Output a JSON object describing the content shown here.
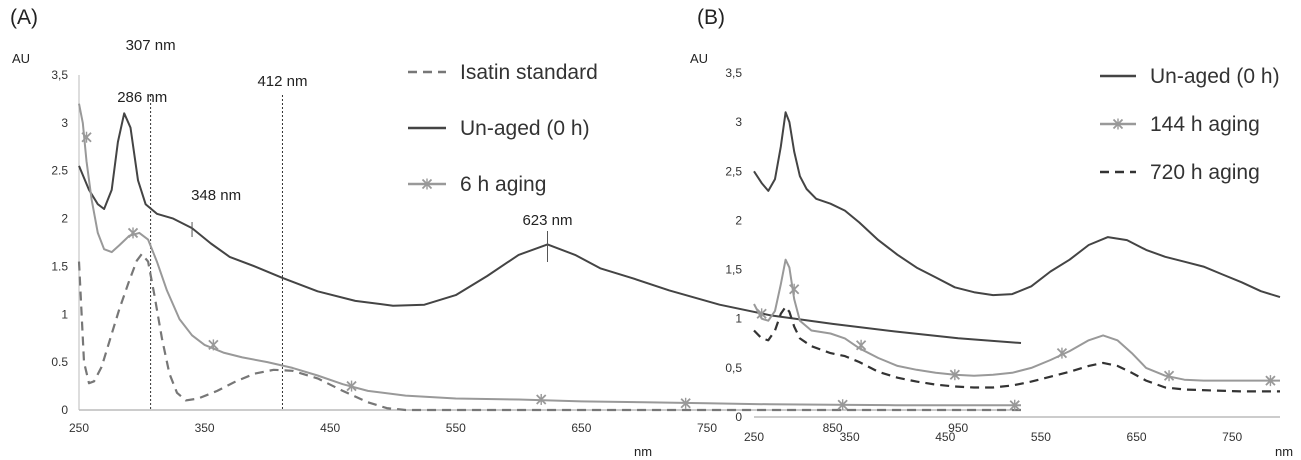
{
  "chart_data": [
    {
      "panel_label": "(A)",
      "type": "line",
      "ylabel": "AU",
      "xlabel": "nm",
      "xlim": [
        250,
        1000
      ],
      "ylim": [
        0,
        3.5
      ],
      "x_ticks": [
        "250",
        "350",
        "450",
        "550",
        "650",
        "750",
        "850",
        "950"
      ],
      "y_ticks": [
        "0",
        "0.5",
        "1",
        "1.5",
        "2",
        "2.5",
        "3",
        "3,5"
      ],
      "legend_position": "top-right",
      "vlines": [
        307,
        412
      ],
      "annotations": [
        {
          "text": "307 nm",
          "x": 307
        },
        {
          "text": "286 nm",
          "x": 286
        },
        {
          "text": "412 nm",
          "x": 412
        },
        {
          "text": "348 nm",
          "x": 348
        },
        {
          "text": "623 nm",
          "x": 623
        }
      ],
      "series": [
        {
          "name": "Isatin standard",
          "color": "#777777",
          "style": "dashed",
          "points": [
            [
              250,
              1.55
            ],
            [
              254,
              0.5
            ],
            [
              258,
              0.28
            ],
            [
              262,
              0.3
            ],
            [
              268,
              0.45
            ],
            [
              275,
              0.75
            ],
            [
              282,
              1.05
            ],
            [
              290,
              1.35
            ],
            [
              296,
              1.56
            ],
            [
              300,
              1.63
            ],
            [
              305,
              1.55
            ],
            [
              310,
              1.2
            ],
            [
              316,
              0.75
            ],
            [
              322,
              0.38
            ],
            [
              328,
              0.18
            ],
            [
              335,
              0.1
            ],
            [
              345,
              0.12
            ],
            [
              360,
              0.2
            ],
            [
              375,
              0.3
            ],
            [
              390,
              0.38
            ],
            [
              405,
              0.42
            ],
            [
              420,
              0.41
            ],
            [
              440,
              0.33
            ],
            [
              460,
              0.2
            ],
            [
              480,
              0.08
            ],
            [
              495,
              0.02
            ],
            [
              510,
              0.0
            ],
            [
              1000,
              0.0
            ]
          ]
        },
        {
          "name": "Un-aged (0 h)",
          "color": "#444444",
          "style": "solid",
          "points": [
            [
              250,
              2.55
            ],
            [
              258,
              2.3
            ],
            [
              265,
              2.15
            ],
            [
              270,
              2.1
            ],
            [
              276,
              2.3
            ],
            [
              281,
              2.8
            ],
            [
              286,
              3.1
            ],
            [
              291,
              2.95
            ],
            [
              297,
              2.4
            ],
            [
              303,
              2.15
            ],
            [
              312,
              2.05
            ],
            [
              325,
              2.0
            ],
            [
              340,
              1.9
            ],
            [
              355,
              1.74
            ],
            [
              370,
              1.6
            ],
            [
              390,
              1.5
            ],
            [
              412,
              1.38
            ],
            [
              440,
              1.24
            ],
            [
              470,
              1.14
            ],
            [
              500,
              1.09
            ],
            [
              525,
              1.1
            ],
            [
              550,
              1.2
            ],
            [
              575,
              1.4
            ],
            [
              600,
              1.62
            ],
            [
              623,
              1.73
            ],
            [
              645,
              1.62
            ],
            [
              665,
              1.48
            ],
            [
              690,
              1.38
            ],
            [
              720,
              1.25
            ],
            [
              760,
              1.1
            ],
            [
              800,
              0.99
            ],
            [
              850,
              0.9
            ],
            [
              900,
              0.82
            ],
            [
              950,
              0.75
            ],
            [
              1000,
              0.7
            ]
          ]
        },
        {
          "name": "6 h aging",
          "color": "#999999",
          "style": "solid-x",
          "points": [
            [
              250,
              3.2
            ],
            [
              253,
              3.0
            ],
            [
              256,
              2.6
            ],
            [
              260,
              2.2
            ],
            [
              265,
              1.85
            ],
            [
              270,
              1.68
            ],
            [
              276,
              1.65
            ],
            [
              282,
              1.72
            ],
            [
              290,
              1.82
            ],
            [
              298,
              1.85
            ],
            [
              305,
              1.78
            ],
            [
              312,
              1.55
            ],
            [
              320,
              1.25
            ],
            [
              330,
              0.95
            ],
            [
              340,
              0.78
            ],
            [
              350,
              0.68
            ],
            [
              365,
              0.6
            ],
            [
              380,
              0.55
            ],
            [
              400,
              0.5
            ],
            [
              420,
              0.44
            ],
            [
              440,
              0.36
            ],
            [
              460,
              0.27
            ],
            [
              480,
              0.2
            ],
            [
              510,
              0.15
            ],
            [
              550,
              0.12
            ],
            [
              600,
              0.11
            ],
            [
              650,
              0.09
            ],
            [
              700,
              0.08
            ],
            [
              750,
              0.07
            ],
            [
              800,
              0.06
            ],
            [
              850,
              0.055
            ],
            [
              900,
              0.05
            ],
            [
              1000,
              0.05
            ]
          ],
          "markers": [
            [
              256,
              2.85
            ],
            [
              293,
              1.85
            ],
            [
              357,
              0.68
            ],
            [
              467,
              0.25
            ],
            [
              618,
              0.11
            ],
            [
              733,
              0.07
            ],
            [
              858,
              0.055
            ],
            [
              995,
              0.05
            ]
          ]
        }
      ]
    },
    {
      "panel_label": "(B)",
      "type": "line",
      "ylabel": "AU",
      "xlabel": "nm",
      "xlim": [
        250,
        800
      ],
      "ylim": [
        0,
        3.5
      ],
      "x_ticks": [
        "250",
        "350",
        "450",
        "550",
        "650",
        "750"
      ],
      "y_ticks": [
        "0",
        "0,5",
        "1",
        "1,5",
        "2",
        "2,5",
        "3",
        "3,5"
      ],
      "legend_position": "top-right",
      "series": [
        {
          "name": "Un-aged (0 h)",
          "color": "#444444",
          "style": "solid",
          "points": [
            [
              250,
              2.5
            ],
            [
              258,
              2.38
            ],
            [
              265,
              2.3
            ],
            [
              272,
              2.42
            ],
            [
              278,
              2.75
            ],
            [
              283,
              3.1
            ],
            [
              287,
              3.0
            ],
            [
              292,
              2.7
            ],
            [
              298,
              2.45
            ],
            [
              305,
              2.32
            ],
            [
              315,
              2.22
            ],
            [
              330,
              2.17
            ],
            [
              345,
              2.1
            ],
            [
              360,
              1.98
            ],
            [
              380,
              1.8
            ],
            [
              400,
              1.65
            ],
            [
              420,
              1.52
            ],
            [
              440,
              1.42
            ],
            [
              460,
              1.32
            ],
            [
              480,
              1.27
            ],
            [
              500,
              1.24
            ],
            [
              520,
              1.25
            ],
            [
              540,
              1.33
            ],
            [
              560,
              1.48
            ],
            [
              580,
              1.6
            ],
            [
              600,
              1.75
            ],
            [
              620,
              1.83
            ],
            [
              640,
              1.8
            ],
            [
              660,
              1.7
            ],
            [
              680,
              1.63
            ],
            [
              700,
              1.58
            ],
            [
              720,
              1.53
            ],
            [
              740,
              1.45
            ],
            [
              760,
              1.37
            ],
            [
              780,
              1.28
            ],
            [
              800,
              1.22
            ]
          ]
        },
        {
          "name": "144 h aging",
          "color": "#999999",
          "style": "solid-x",
          "points": [
            [
              250,
              1.15
            ],
            [
              258,
              1.0
            ],
            [
              265,
              0.98
            ],
            [
              272,
              1.08
            ],
            [
              278,
              1.35
            ],
            [
              283,
              1.6
            ],
            [
              287,
              1.52
            ],
            [
              292,
              1.2
            ],
            [
              298,
              0.98
            ],
            [
              310,
              0.88
            ],
            [
              330,
              0.85
            ],
            [
              345,
              0.8
            ],
            [
              360,
              0.7
            ],
            [
              380,
              0.6
            ],
            [
              400,
              0.52
            ],
            [
              420,
              0.48
            ],
            [
              440,
              0.45
            ],
            [
              460,
              0.43
            ],
            [
              480,
              0.42
            ],
            [
              500,
              0.43
            ],
            [
              520,
              0.45
            ],
            [
              540,
              0.5
            ],
            [
              560,
              0.58
            ],
            [
              580,
              0.67
            ],
            [
              600,
              0.78
            ],
            [
              615,
              0.83
            ],
            [
              630,
              0.78
            ],
            [
              645,
              0.65
            ],
            [
              660,
              0.5
            ],
            [
              680,
              0.42
            ],
            [
              700,
              0.38
            ],
            [
              720,
              0.37
            ],
            [
              760,
              0.37
            ],
            [
              800,
              0.37
            ]
          ],
          "markers": [
            [
              258,
              1.05
            ],
            [
              292,
              1.3
            ],
            [
              362,
              0.73
            ],
            [
              460,
              0.43
            ],
            [
              572,
              0.65
            ],
            [
              684,
              0.42
            ],
            [
              790,
              0.37
            ]
          ]
        },
        {
          "name": "720 h aging",
          "color": "#333333",
          "style": "dashed",
          "points": [
            [
              250,
              0.88
            ],
            [
              258,
              0.8
            ],
            [
              265,
              0.78
            ],
            [
              272,
              0.88
            ],
            [
              278,
              1.05
            ],
            [
              283,
              1.12
            ],
            [
              287,
              1.07
            ],
            [
              292,
              0.92
            ],
            [
              298,
              0.8
            ],
            [
              310,
              0.72
            ],
            [
              330,
              0.65
            ],
            [
              345,
              0.62
            ],
            [
              360,
              0.56
            ],
            [
              380,
              0.46
            ],
            [
              400,
              0.4
            ],
            [
              420,
              0.36
            ],
            [
              440,
              0.33
            ],
            [
              460,
              0.31
            ],
            [
              480,
              0.3
            ],
            [
              500,
              0.3
            ],
            [
              520,
              0.32
            ],
            [
              540,
              0.36
            ],
            [
              560,
              0.41
            ],
            [
              580,
              0.46
            ],
            [
              600,
              0.52
            ],
            [
              615,
              0.55
            ],
            [
              630,
              0.52
            ],
            [
              645,
              0.45
            ],
            [
              660,
              0.37
            ],
            [
              680,
              0.3
            ],
            [
              700,
              0.28
            ],
            [
              730,
              0.27
            ],
            [
              760,
              0.26
            ],
            [
              800,
              0.26
            ]
          ]
        }
      ]
    }
  ]
}
